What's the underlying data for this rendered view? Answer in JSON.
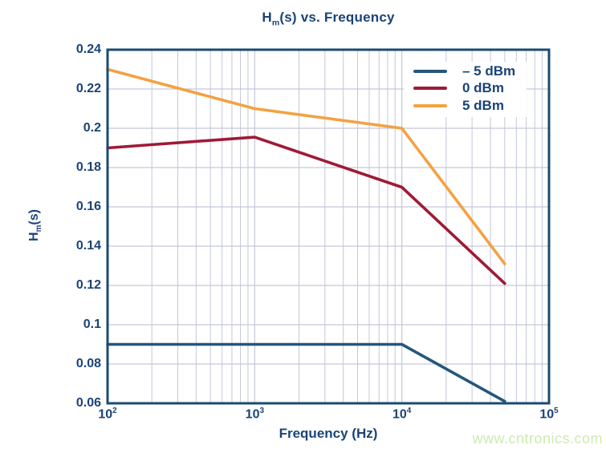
{
  "watermark": {
    "text": "www.cntronics.com",
    "color": "#cfe9b2"
  },
  "chart_data": {
    "type": "line",
    "title": {
      "prefix": "H",
      "subscript": "m",
      "suffix": "(s) vs. Frequency"
    },
    "xlabel": "Frequency (Hz)",
    "ylabel": {
      "prefix": "H",
      "subscript": "m",
      "suffix": "(s)"
    },
    "x_scale": "log",
    "xlim": [
      100,
      100000
    ],
    "ylim": [
      0.06,
      0.24
    ],
    "x_ticks": [
      {
        "value": 100,
        "label_base": "10",
        "label_exp": "2"
      },
      {
        "value": 1000,
        "label_base": "10",
        "label_exp": "3"
      },
      {
        "value": 10000,
        "label_base": "10",
        "label_exp": "4"
      },
      {
        "value": 100000,
        "label_base": "10",
        "label_exp": "5"
      }
    ],
    "y_ticks": [
      {
        "value": 0.06,
        "label": "0.06"
      },
      {
        "value": 0.08,
        "label": "0.08"
      },
      {
        "value": 0.1,
        "label": "0.1"
      },
      {
        "value": 0.12,
        "label": "0.12"
      },
      {
        "value": 0.14,
        "label": "0.14"
      },
      {
        "value": 0.16,
        "label": "0.16"
      },
      {
        "value": 0.18,
        "label": "0.18"
      },
      {
        "value": 0.2,
        "label": "0.2"
      },
      {
        "value": 0.22,
        "label": "0.22"
      },
      {
        "value": 0.24,
        "label": "0.24"
      }
    ],
    "grid": {
      "show": true,
      "minor_x_log": true,
      "color": "#c4c7da"
    },
    "frame_color": "#1b4b70",
    "text_color": "#1a4377",
    "legend": {
      "position": "top-right"
    },
    "series": [
      {
        "name": "– 5 dBm",
        "color": "#24577a",
        "x": [
          100,
          1000,
          10000,
          50000
        ],
        "y": [
          0.09,
          0.09,
          0.09,
          0.061
        ]
      },
      {
        "name": "0 dBm",
        "color": "#9e1b35",
        "x": [
          100,
          1000,
          10000,
          50000
        ],
        "y": [
          0.19,
          0.1955,
          0.17,
          0.121
        ]
      },
      {
        "name": "5 dBm",
        "color": "#f2a243",
        "x": [
          100,
          1000,
          10000,
          50000
        ],
        "y": [
          0.23,
          0.21,
          0.2,
          0.131
        ]
      }
    ]
  }
}
